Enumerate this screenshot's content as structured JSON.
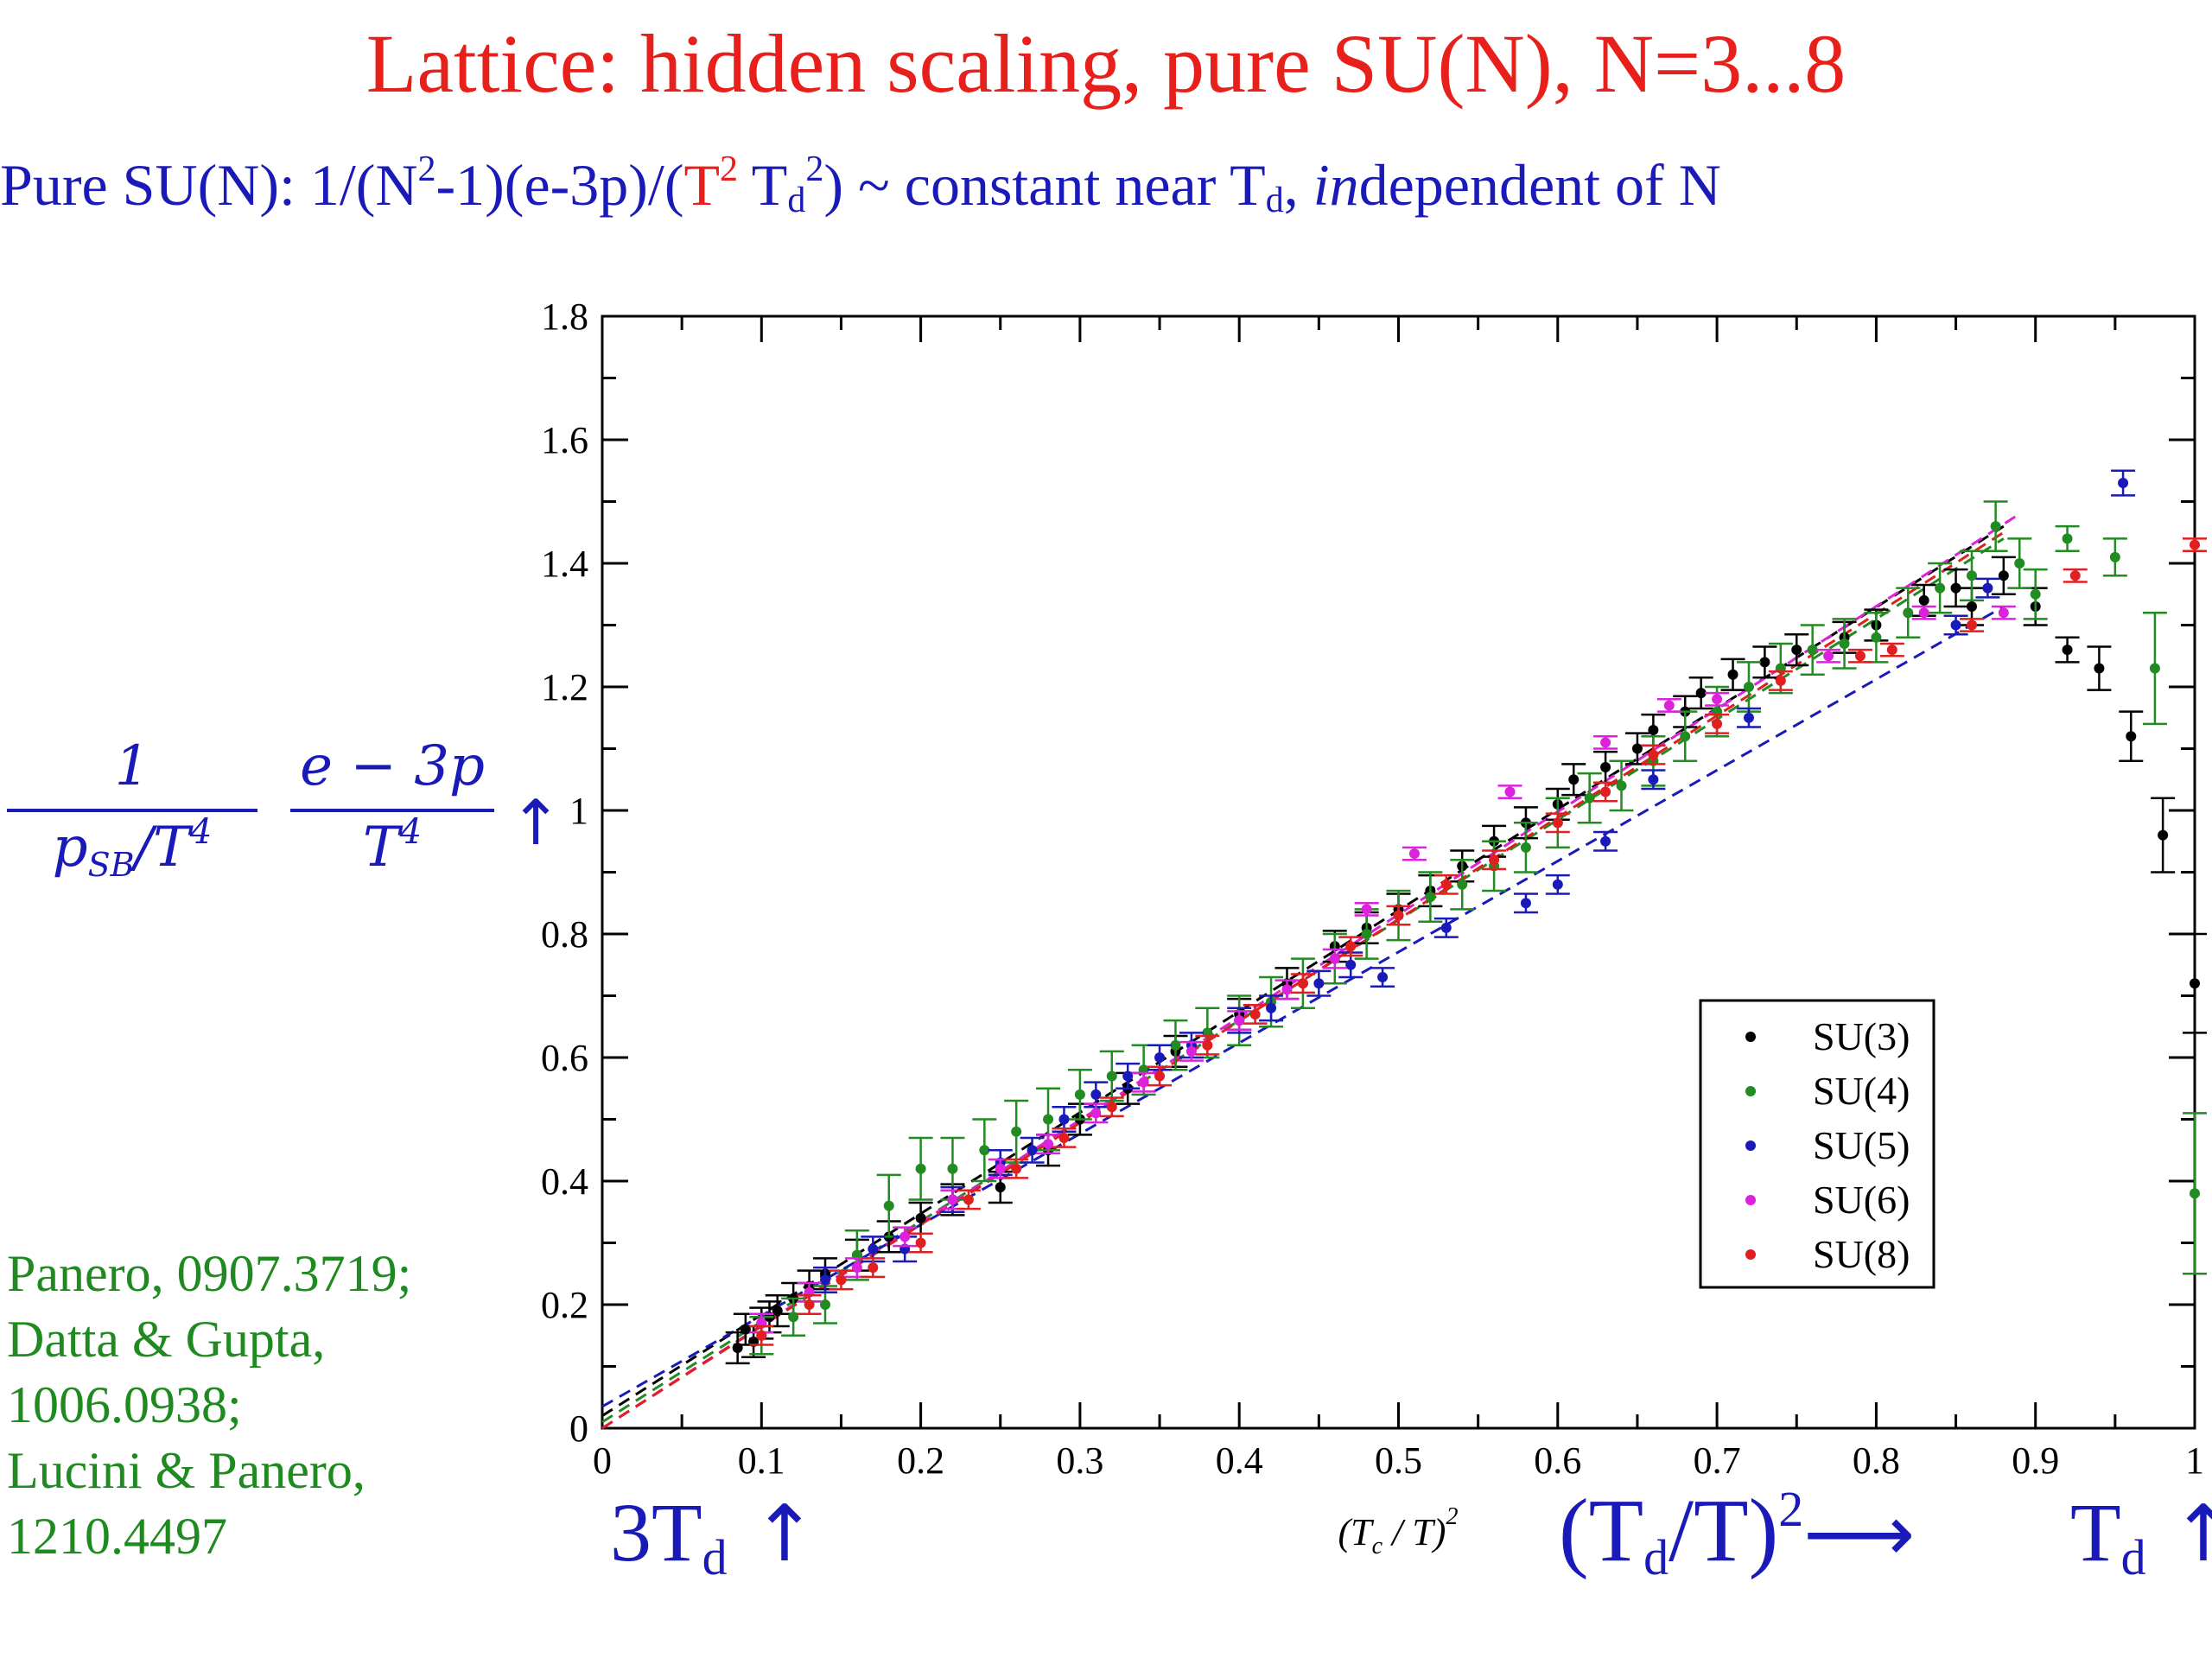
{
  "slide": {
    "title": "Lattice: hidden scaling, pure SU(N), N=3...8",
    "subtitle": {
      "p1": "Pure SU(N):  1/(N",
      "sup1": "2",
      "p2": "-1)(e-3p)/(",
      "red_T": "T",
      "sup2": "2",
      "p3": " T",
      "sub1": "d",
      "sup3": "2",
      "p4": ") ~ constant near T",
      "sub2": "d",
      "p5": ", ",
      "italic": "in",
      "p6": "dependent of N"
    },
    "references": [
      "Panero, 0907.3719;",
      "Datta & Gupta,",
      "1006.0938;",
      "Lucini & Panero,",
      "1210.4497"
    ],
    "ylabel_formula": {
      "num1": "1",
      "den1_base": "p",
      "den1_sub": "SB",
      "den1_rest": "/T",
      "den1_sup": "4",
      "num2": "e − 3p",
      "den2_base": "T",
      "den2_sup": "4",
      "arrow": "↑"
    },
    "bottom_annotations": {
      "left": {
        "text": "3T",
        "sub": "d",
        "arrow": " ↑"
      },
      "mid": {
        "text": "(T",
        "sub": "d",
        "mid": "/T)",
        "sup": "2",
        "arrow": "⟶"
      },
      "right": {
        "text": "T",
        "sub": "d",
        "arrow": " ↑"
      }
    }
  },
  "chart_data": {
    "type": "scatter",
    "xlabel": "(T_c / T)^2",
    "xlim": [
      0,
      1
    ],
    "ylim": [
      0,
      1.8
    ],
    "x_ticks": [
      "0",
      "0.1",
      "0.2",
      "0.3",
      "0.4",
      "0.5",
      "0.6",
      "0.7",
      "0.8",
      "0.9",
      "1"
    ],
    "y_ticks": [
      "0",
      "0.2",
      "0.4",
      "0.6",
      "0.8",
      "1",
      "1.2",
      "1.4",
      "1.6",
      "1.8"
    ],
    "legend_position": "lower-right",
    "series": [
      {
        "name": "SU(3)",
        "color": "#000000",
        "points": [
          [
            0.085,
            0.13
          ],
          [
            0.09,
            0.16
          ],
          [
            0.095,
            0.14
          ],
          [
            0.1,
            0.17
          ],
          [
            0.105,
            0.18
          ],
          [
            0.11,
            0.19
          ],
          [
            0.12,
            0.21
          ],
          [
            0.13,
            0.23
          ],
          [
            0.14,
            0.25
          ],
          [
            0.16,
            0.28
          ],
          [
            0.18,
            0.31
          ],
          [
            0.2,
            0.34
          ],
          [
            0.22,
            0.37
          ],
          [
            0.25,
            0.39
          ],
          [
            0.28,
            0.45
          ],
          [
            0.3,
            0.5
          ],
          [
            0.33,
            0.55
          ],
          [
            0.36,
            0.61
          ],
          [
            0.4,
            0.67
          ],
          [
            0.43,
            0.72
          ],
          [
            0.46,
            0.78
          ],
          [
            0.48,
            0.81
          ],
          [
            0.5,
            0.84
          ],
          [
            0.52,
            0.87
          ],
          [
            0.54,
            0.91
          ],
          [
            0.56,
            0.95
          ],
          [
            0.58,
            0.98
          ],
          [
            0.6,
            1.01
          ],
          [
            0.61,
            1.05
          ],
          [
            0.63,
            1.07
          ],
          [
            0.65,
            1.1
          ],
          [
            0.66,
            1.13
          ],
          [
            0.68,
            1.16
          ],
          [
            0.69,
            1.19
          ],
          [
            0.71,
            1.22
          ],
          [
            0.73,
            1.24
          ],
          [
            0.75,
            1.26
          ],
          [
            0.78,
            1.28
          ],
          [
            0.8,
            1.3
          ],
          [
            0.83,
            1.34
          ],
          [
            0.85,
            1.36
          ],
          [
            0.86,
            1.33
          ],
          [
            0.88,
            1.38
          ],
          [
            0.9,
            1.33
          ],
          [
            0.92,
            1.26
          ],
          [
            0.94,
            1.23
          ],
          [
            0.96,
            1.12
          ],
          [
            0.98,
            0.96
          ],
          [
            1.0,
            0.72
          ]
        ],
        "errors": [
          0.025,
          0.025,
          0.025,
          0.025,
          0.025,
          0.025,
          0.025,
          0.025,
          0.025,
          0.025,
          0.025,
          0.025,
          0.025,
          0.025,
          0.025,
          0.025,
          0.025,
          0.025,
          0.025,
          0.025,
          0.025,
          0.025,
          0.025,
          0.025,
          0.025,
          0.025,
          0.025,
          0.025,
          0.025,
          0.025,
          0.025,
          0.025,
          0.025,
          0.025,
          0.025,
          0.025,
          0.025,
          0.025,
          0.025,
          0.025,
          0.03,
          0.03,
          0.03,
          0.03,
          0.02,
          0.035,
          0.04,
          0.06,
          0.08
        ]
      },
      {
        "name": "SU(4)",
        "color": "#228b22",
        "points": [
          [
            0.1,
            0.15
          ],
          [
            0.12,
            0.18
          ],
          [
            0.14,
            0.2
          ],
          [
            0.16,
            0.28
          ],
          [
            0.18,
            0.36
          ],
          [
            0.2,
            0.42
          ],
          [
            0.22,
            0.42
          ],
          [
            0.24,
            0.45
          ],
          [
            0.26,
            0.48
          ],
          [
            0.28,
            0.5
          ],
          [
            0.3,
            0.54
          ],
          [
            0.32,
            0.57
          ],
          [
            0.34,
            0.58
          ],
          [
            0.36,
            0.62
          ],
          [
            0.38,
            0.64
          ],
          [
            0.4,
            0.66
          ],
          [
            0.42,
            0.69
          ],
          [
            0.44,
            0.72
          ],
          [
            0.46,
            0.76
          ],
          [
            0.48,
            0.8
          ],
          [
            0.5,
            0.83
          ],
          [
            0.52,
            0.86
          ],
          [
            0.54,
            0.88
          ],
          [
            0.56,
            0.91
          ],
          [
            0.58,
            0.94
          ],
          [
            0.6,
            0.98
          ],
          [
            0.62,
            1.02
          ],
          [
            0.64,
            1.04
          ],
          [
            0.66,
            1.08
          ],
          [
            0.68,
            1.12
          ],
          [
            0.7,
            1.16
          ],
          [
            0.72,
            1.2
          ],
          [
            0.74,
            1.23
          ],
          [
            0.76,
            1.26
          ],
          [
            0.78,
            1.27
          ],
          [
            0.8,
            1.28
          ],
          [
            0.82,
            1.32
          ],
          [
            0.84,
            1.36
          ],
          [
            0.86,
            1.38
          ],
          [
            0.875,
            1.46
          ],
          [
            0.89,
            1.4
          ],
          [
            0.9,
            1.35
          ],
          [
            0.92,
            1.44
          ],
          [
            0.95,
            1.41
          ],
          [
            0.975,
            1.23
          ],
          [
            1.0,
            0.38
          ]
        ],
        "errors": [
          0.03,
          0.03,
          0.03,
          0.04,
          0.05,
          0.05,
          0.05,
          0.05,
          0.05,
          0.05,
          0.04,
          0.04,
          0.04,
          0.04,
          0.04,
          0.04,
          0.04,
          0.04,
          0.04,
          0.04,
          0.04,
          0.04,
          0.04,
          0.04,
          0.04,
          0.04,
          0.04,
          0.04,
          0.04,
          0.04,
          0.04,
          0.04,
          0.04,
          0.04,
          0.04,
          0.04,
          0.04,
          0.04,
          0.04,
          0.04,
          0.04,
          0.04,
          0.02,
          0.03,
          0.09,
          0.13
        ]
      },
      {
        "name": "SU(5)",
        "color": "#1a1ab8",
        "points": [
          [
            0.14,
            0.24
          ],
          [
            0.17,
            0.29
          ],
          [
            0.19,
            0.29
          ],
          [
            0.22,
            0.37
          ],
          [
            0.25,
            0.43
          ],
          [
            0.27,
            0.45
          ],
          [
            0.29,
            0.5
          ],
          [
            0.31,
            0.54
          ],
          [
            0.33,
            0.57
          ],
          [
            0.35,
            0.6
          ],
          [
            0.37,
            0.62
          ],
          [
            0.4,
            0.66
          ],
          [
            0.42,
            0.68
          ],
          [
            0.45,
            0.72
          ],
          [
            0.47,
            0.75
          ],
          [
            0.49,
            0.73
          ],
          [
            0.53,
            0.81
          ],
          [
            0.58,
            0.85
          ],
          [
            0.6,
            0.88
          ],
          [
            0.63,
            0.95
          ],
          [
            0.66,
            1.05
          ],
          [
            0.72,
            1.15
          ],
          [
            0.85,
            1.3
          ],
          [
            0.87,
            1.36
          ],
          [
            0.955,
            1.53
          ]
        ],
        "errors": [
          0.02,
          0.02,
          0.02,
          0.02,
          0.02,
          0.02,
          0.02,
          0.02,
          0.02,
          0.02,
          0.02,
          0.02,
          0.02,
          0.02,
          0.02,
          0.015,
          0.015,
          0.015,
          0.015,
          0.015,
          0.015,
          0.015,
          0.015,
          0.015,
          0.02
        ]
      },
      {
        "name": "SU(6)",
        "color": "#dd22dd",
        "points": [
          [
            0.1,
            0.17
          ],
          [
            0.13,
            0.22
          ],
          [
            0.16,
            0.26
          ],
          [
            0.19,
            0.31
          ],
          [
            0.22,
            0.37
          ],
          [
            0.25,
            0.42
          ],
          [
            0.28,
            0.46
          ],
          [
            0.31,
            0.51
          ],
          [
            0.34,
            0.56
          ],
          [
            0.37,
            0.61
          ],
          [
            0.4,
            0.66
          ],
          [
            0.43,
            0.71
          ],
          [
            0.46,
            0.76
          ],
          [
            0.48,
            0.84
          ],
          [
            0.51,
            0.93
          ],
          [
            0.57,
            1.03
          ],
          [
            0.63,
            1.11
          ],
          [
            0.67,
            1.17
          ],
          [
            0.7,
            1.18
          ],
          [
            0.77,
            1.25
          ],
          [
            0.83,
            1.32
          ],
          [
            0.88,
            1.32
          ]
        ],
        "errors": [
          0.015,
          0.015,
          0.015,
          0.015,
          0.015,
          0.015,
          0.015,
          0.015,
          0.015,
          0.015,
          0.015,
          0.015,
          0.015,
          0.01,
          0.01,
          0.01,
          0.01,
          0.01,
          0.01,
          0.01,
          0.01,
          0.01
        ]
      },
      {
        "name": "SU(8)",
        "color": "#e02020",
        "points": [
          [
            0.1,
            0.15
          ],
          [
            0.13,
            0.2
          ],
          [
            0.15,
            0.24
          ],
          [
            0.17,
            0.26
          ],
          [
            0.2,
            0.3
          ],
          [
            0.23,
            0.37
          ],
          [
            0.26,
            0.42
          ],
          [
            0.29,
            0.47
          ],
          [
            0.32,
            0.52
          ],
          [
            0.35,
            0.57
          ],
          [
            0.38,
            0.62
          ],
          [
            0.41,
            0.67
          ],
          [
            0.44,
            0.72
          ],
          [
            0.47,
            0.78
          ],
          [
            0.5,
            0.83
          ],
          [
            0.53,
            0.88
          ],
          [
            0.56,
            0.92
          ],
          [
            0.6,
            0.98
          ],
          [
            0.63,
            1.03
          ],
          [
            0.66,
            1.09
          ],
          [
            0.7,
            1.14
          ],
          [
            0.74,
            1.21
          ],
          [
            0.79,
            1.25
          ],
          [
            0.81,
            1.26
          ],
          [
            0.86,
            1.3
          ],
          [
            0.925,
            1.38
          ],
          [
            1.0,
            1.43
          ]
        ],
        "errors": [
          0.015,
          0.015,
          0.015,
          0.015,
          0.015,
          0.015,
          0.015,
          0.015,
          0.015,
          0.015,
          0.015,
          0.015,
          0.015,
          0.015,
          0.015,
          0.015,
          0.015,
          0.015,
          0.015,
          0.015,
          0.015,
          0.015,
          0.01,
          0.01,
          0.01,
          0.01,
          0.01
        ]
      }
    ],
    "fit_lines": [
      {
        "color": "#000000",
        "from": [
          0,
          0.02
        ],
        "to": [
          0.88,
          1.46
        ]
      },
      {
        "color": "#228b22",
        "from": [
          0,
          0.01
        ],
        "to": [
          0.88,
          1.44
        ]
      },
      {
        "color": "#1a1ab8",
        "from": [
          0,
          0.035
        ],
        "to": [
          0.88,
          1.33
        ]
      },
      {
        "color": "#dd22dd",
        "from": [
          0,
          0.0
        ],
        "to": [
          0.89,
          1.48
        ]
      },
      {
        "color": "#e02020",
        "from": [
          0,
          0.0
        ],
        "to": [
          0.88,
          1.45
        ]
      }
    ]
  }
}
